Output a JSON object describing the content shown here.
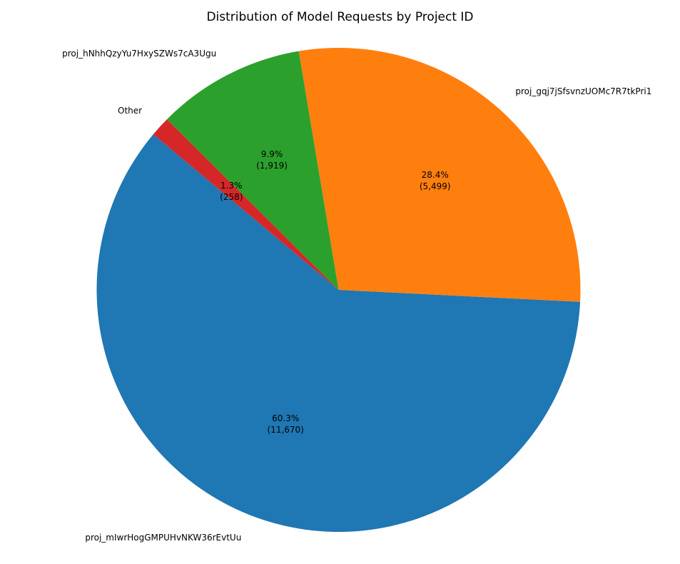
{
  "chart_data": {
    "type": "pie",
    "title": "Distribution of Model Requests by Project ID",
    "startangle": 140,
    "counterclock": true,
    "label_distance": 1.1,
    "pct_distance": 0.6,
    "slices": [
      {
        "label": "proj_mIwrHogGMPUHvNKW36rEvtUu",
        "value": 11670,
        "pct": "60.3%",
        "count_label": "(11,670)",
        "color": "#1f77b4"
      },
      {
        "label": "proj_gqj7jSfsvnzUOMc7R7tkPri1",
        "value": 5499,
        "pct": "28.4%",
        "count_label": "(5,499)",
        "color": "#ff7f0e"
      },
      {
        "label": "proj_hNhhQzyYu7HxySZWs7cA3Ugu",
        "value": 1919,
        "pct": "9.9%",
        "count_label": "(1,919)",
        "color": "#2ca02c"
      },
      {
        "label": "Other",
        "value": 258,
        "pct": "1.3%",
        "count_label": "(258)",
        "color": "#d62728"
      }
    ]
  }
}
